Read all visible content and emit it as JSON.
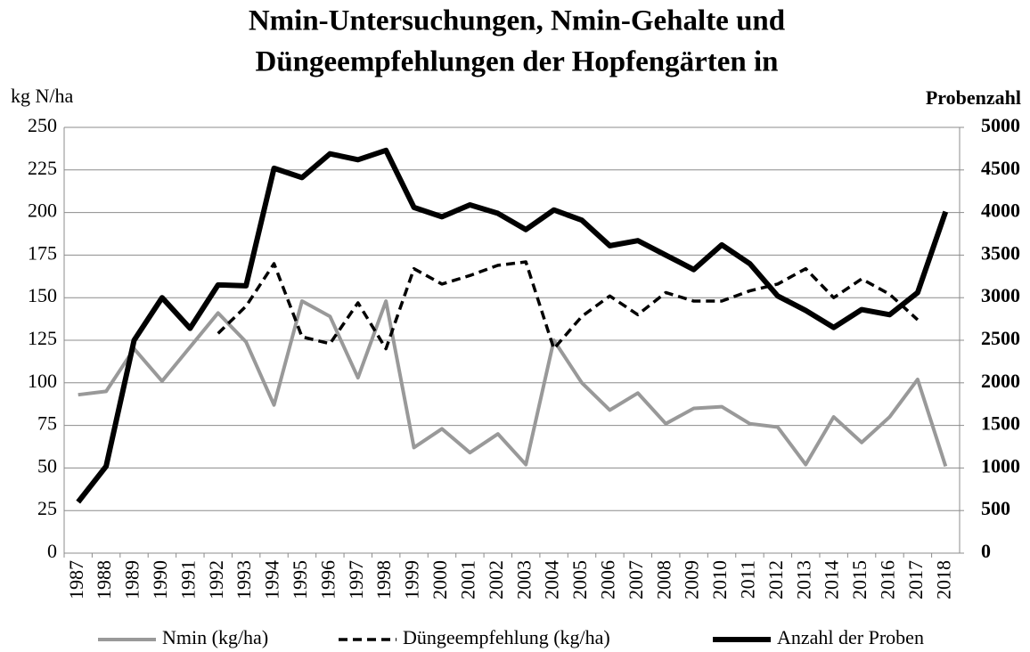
{
  "chart_data": {
    "type": "line",
    "title": [
      "Nmin-Untersuchungen, Nmin-Gehalte und",
      "Düngeempfehlungen der Hopfengärten in"
    ],
    "y_label": "kg N/ha",
    "y2_label": "Probenzahl",
    "categories": [
      "1987",
      "1988",
      "1989",
      "1990",
      "1991",
      "1992",
      "1993",
      "1994",
      "1995",
      "1996",
      "1997",
      "1998",
      "1999",
      "2000",
      "2001",
      "2002",
      "2003",
      "2004",
      "2005",
      "2006",
      "2007",
      "2008",
      "2009",
      "2010",
      "2011",
      "2012",
      "2013",
      "2014",
      "2015",
      "2016",
      "2017",
      "2018"
    ],
    "series": [
      {
        "name": "Nmin (kg/ha)",
        "color": "#999999",
        "dashed": false,
        "values": [
          93,
          95,
          120,
          101,
          121,
          141,
          124,
          87,
          148,
          139,
          103,
          148,
          62,
          73,
          59,
          70,
          52,
          125,
          100,
          84,
          94,
          76,
          85,
          86,
          76,
          74,
          52,
          80,
          65,
          80,
          102,
          51
        ]
      },
      {
        "name": "Düngeempfehlung (kg/ha)",
        "color": "#000000",
        "dashed": true,
        "values": [
          null,
          null,
          null,
          null,
          null,
          129,
          145,
          170,
          127,
          123,
          147,
          120,
          167,
          158,
          163,
          169,
          171,
          120,
          139,
          151,
          140,
          153,
          148,
          148,
          154,
          158,
          167,
          150,
          161,
          152,
          137,
          null
        ]
      },
      {
        "name": "Anzahl der Proben",
        "color": "#000000",
        "dashed": false,
        "axis": "y2",
        "values": [
          600,
          1020,
          2500,
          3000,
          2640,
          3150,
          3140,
          4520,
          4410,
          4690,
          4620,
          4730,
          4060,
          3950,
          4090,
          3990,
          3800,
          4030,
          3910,
          3610,
          3670,
          3500,
          3330,
          3620,
          3400,
          3020,
          2850,
          2650,
          2860,
          2800,
          3060,
          4010
        ]
      }
    ],
    "ylim": [
      0,
      250
    ],
    "yticks": [
      0,
      25,
      50,
      75,
      100,
      125,
      150,
      175,
      200,
      225,
      250
    ],
    "y2lim": [
      0,
      5000
    ],
    "y2ticks": [
      0,
      500,
      1000,
      1500,
      2000,
      2500,
      3000,
      3500,
      4000,
      4500,
      5000
    ],
    "grid": true,
    "legend": "bottom"
  }
}
